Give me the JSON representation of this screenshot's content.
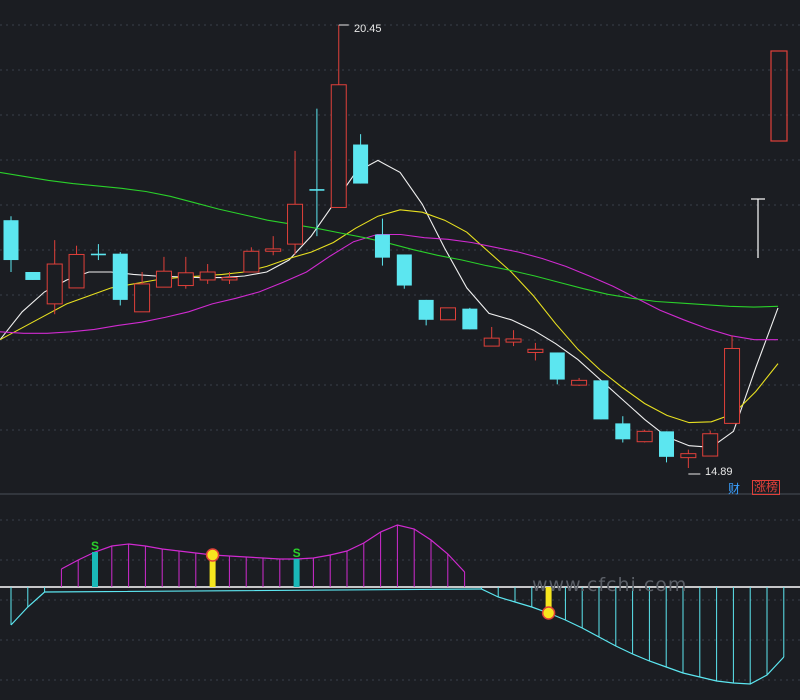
{
  "colors": {
    "background": "#1b1d22",
    "grid": "#3a3f4a",
    "up": "#e0403a",
    "down": "#5ce6f0",
    "ma5": "#f0f0f0",
    "ma10": "#e8e020",
    "ma20": "#d02ad0",
    "ma60": "#2ad02a",
    "osc_up": "#d02ad0",
    "osc_down": "#5ce6f0",
    "marker_teal": "#1ab8b8",
    "marker_yellow": "#f6e51e",
    "marker_s": "#2ad02a",
    "tag_cai": "#3aa0ff",
    "tag_zhangbang": "#e0403a"
  },
  "annotations": {
    "high_label": "20.45",
    "low_label": "14.89",
    "tag_cai": "财",
    "tag_zhangbang": "涨榜",
    "signal_s": "S",
    "watermark": "www.cfchi.com"
  },
  "chart_data": [
    {
      "type": "candlestick",
      "price_range": [
        14.5,
        21.0
      ],
      "grid": true,
      "candles": [
        {
          "open": 18.0,
          "close": 17.5,
          "high": 18.05,
          "low": 17.35
        },
        {
          "open": 17.35,
          "close": 17.25,
          "high": 17.35,
          "low": 17.25
        },
        {
          "open": 16.95,
          "close": 17.45,
          "high": 17.75,
          "low": 16.82
        },
        {
          "open": 17.15,
          "close": 17.57,
          "high": 17.68,
          "low": 17.15
        },
        {
          "open": 17.58,
          "close": 17.56,
          "high": 17.7,
          "low": 17.5
        },
        {
          "open": 17.58,
          "close": 17.0,
          "high": 17.6,
          "low": 16.93
        },
        {
          "open": 16.85,
          "close": 17.2,
          "high": 17.35,
          "low": 16.85
        },
        {
          "open": 17.16,
          "close": 17.36,
          "high": 17.54,
          "low": 17.16
        },
        {
          "open": 17.18,
          "close": 17.34,
          "high": 17.54,
          "low": 17.14
        },
        {
          "open": 17.25,
          "close": 17.35,
          "high": 17.45,
          "low": 17.2
        },
        {
          "open": 17.25,
          "close": 17.28,
          "high": 17.35,
          "low": 17.2
        },
        {
          "open": 17.35,
          "close": 17.61,
          "high": 17.66,
          "low": 17.35
        },
        {
          "open": 17.61,
          "close": 17.64,
          "high": 17.8,
          "low": 17.56
        },
        {
          "open": 17.7,
          "close": 18.2,
          "high": 18.87,
          "low": 17.57
        },
        {
          "open": 18.39,
          "close": 18.37,
          "high": 19.4,
          "low": 17.8
        },
        {
          "open": 18.16,
          "close": 19.7,
          "high": 20.45,
          "low": 18.16
        },
        {
          "open": 18.95,
          "close": 18.46,
          "high": 19.08,
          "low": 18.46
        },
        {
          "open": 17.82,
          "close": 17.53,
          "high": 18.02,
          "low": 17.43
        },
        {
          "open": 17.57,
          "close": 17.18,
          "high": 17.57,
          "low": 17.14
        },
        {
          "open": 17.0,
          "close": 16.75,
          "high": 17.0,
          "low": 16.68
        },
        {
          "open": 16.75,
          "close": 16.9,
          "high": 16.9,
          "low": 16.75
        },
        {
          "open": 16.89,
          "close": 16.63,
          "high": 16.9,
          "low": 16.63
        },
        {
          "open": 16.42,
          "close": 16.52,
          "high": 16.66,
          "low": 16.42
        },
        {
          "open": 16.47,
          "close": 16.51,
          "high": 16.62,
          "low": 16.42
        },
        {
          "open": 16.34,
          "close": 16.38,
          "high": 16.46,
          "low": 16.24
        },
        {
          "open": 16.34,
          "close": 16.0,
          "high": 16.34,
          "low": 15.94
        },
        {
          "open": 15.93,
          "close": 15.99,
          "high": 16.02,
          "low": 15.92
        },
        {
          "open": 15.99,
          "close": 15.5,
          "high": 15.99,
          "low": 15.5
        },
        {
          "open": 15.45,
          "close": 15.25,
          "high": 15.54,
          "low": 15.21
        },
        {
          "open": 15.22,
          "close": 15.35,
          "high": 15.37,
          "low": 15.21
        },
        {
          "open": 15.35,
          "close": 15.03,
          "high": 15.35,
          "low": 14.96
        },
        {
          "open": 15.02,
          "close": 15.07,
          "high": 15.12,
          "low": 14.89
        },
        {
          "open": 15.04,
          "close": 15.32,
          "high": 15.36,
          "low": 15.04
        },
        {
          "open": 15.45,
          "close": 16.39,
          "high": 16.55,
          "low": 15.45
        }
      ],
      "ma_lines": [
        {
          "name": "MA5",
          "color": "ma5",
          "values": [
            16.5,
            16.85,
            17.1,
            17.25,
            17.35,
            17.35,
            17.32,
            17.3,
            17.29,
            17.28,
            17.28,
            17.3,
            17.35,
            17.5,
            17.8,
            18.2,
            18.6,
            18.75,
            18.6,
            18.2,
            17.65,
            17.15,
            16.83,
            16.75,
            16.62,
            16.45,
            16.25,
            16.0,
            15.75,
            15.5,
            15.28,
            15.17,
            15.15,
            15.35,
            16.15,
            16.9
          ]
        },
        {
          "name": "MA10",
          "color": "ma10",
          "values": [
            16.5,
            16.65,
            16.8,
            16.95,
            17.05,
            17.15,
            17.2,
            17.25,
            17.28,
            17.3,
            17.32,
            17.35,
            17.42,
            17.52,
            17.6,
            17.72,
            17.9,
            18.05,
            18.13,
            18.1,
            18.0,
            17.85,
            17.6,
            17.35,
            17.05,
            16.7,
            16.38,
            16.12,
            15.9,
            15.7,
            15.55,
            15.46,
            15.47,
            15.57,
            15.85,
            16.2
          ]
        },
        {
          "name": "MA20",
          "color": "ma20",
          "values": [
            16.6,
            16.58,
            16.58,
            16.6,
            16.63,
            16.68,
            16.72,
            16.78,
            16.85,
            16.95,
            17.02,
            17.1,
            17.22,
            17.35,
            17.55,
            17.73,
            17.82,
            17.82,
            17.78,
            17.76,
            17.72,
            17.66,
            17.6,
            17.52,
            17.42,
            17.3,
            17.17,
            17.02,
            16.87,
            16.75,
            16.64,
            16.55,
            16.5,
            16.5
          ]
        },
        {
          "name": "MA60",
          "color": "ma60",
          "values": [
            18.6,
            18.55,
            18.5,
            18.46,
            18.43,
            18.4,
            18.36,
            18.3,
            18.22,
            18.14,
            18.07,
            18.0,
            17.95,
            17.9,
            17.84,
            17.78,
            17.71,
            17.63,
            17.56,
            17.5,
            17.43,
            17.37,
            17.3,
            17.22,
            17.14,
            17.07,
            17.02,
            16.98,
            16.96,
            16.94,
            16.92,
            16.91,
            16.92
          ]
        }
      ]
    },
    {
      "type": "oscillator",
      "range": [
        -1.0,
        0.42
      ],
      "values": [
        -0.38,
        -0.2,
        -0.05,
        0.18,
        0.27,
        0.35,
        0.41,
        0.43,
        0.41,
        0.38,
        0.36,
        0.34,
        0.32,
        0.31,
        0.3,
        0.29,
        0.28,
        0.28,
        0.29,
        0.32,
        0.36,
        0.44,
        0.55,
        0.62,
        0.58,
        0.47,
        0.33,
        0.15,
        -0.02,
        -0.1,
        -0.15,
        -0.2,
        -0.26,
        -0.33,
        -0.41,
        -0.5,
        -0.59,
        -0.67,
        -0.74,
        -0.8,
        -0.86,
        -0.9,
        -0.94,
        -0.96,
        -0.97,
        -0.88,
        -0.7
      ],
      "teal_markers": [
        5,
        17
      ],
      "yellow_markers": [
        12,
        32
      ]
    }
  ]
}
